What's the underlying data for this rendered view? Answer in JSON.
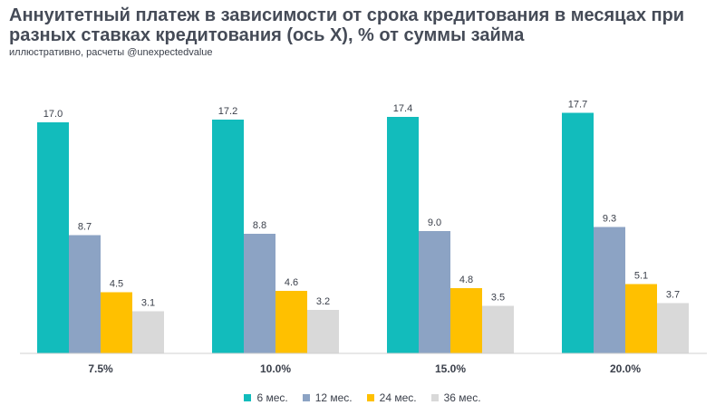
{
  "header": {
    "title": "Аннуитетный платеж в зависимости от срока кредитования в месяцах при разных ставках кредитования (ось X), % от суммы займа",
    "subtitle": "иллюстративно, расчеты @unexpectedvalue"
  },
  "colors": {
    "6 мес.": "#12bcbc",
    "12 мес.": "#8ca3c4",
    "24 мес.": "#ffc000",
    "36 мес.": "#d9d9d9"
  },
  "chart_data": {
    "type": "bar",
    "title": "Аннуитетный платеж в зависимости от срока кредитования в месяцах при разных ставках кредитования (ось X), % от суммы займа",
    "xlabel": "",
    "ylabel": "",
    "categories": [
      "7.5%",
      "10.0%",
      "15.0%",
      "20.0%"
    ],
    "series": [
      {
        "name": "6 мес.",
        "values": [
          17.0,
          17.2,
          17.4,
          17.7
        ],
        "labels": [
          "17.0",
          "17.2",
          "17.4",
          "17.7"
        ]
      },
      {
        "name": "12 мес.",
        "values": [
          8.7,
          8.8,
          9.0,
          9.3
        ],
        "labels": [
          "8.7",
          "8.8",
          "9.0",
          "9.3"
        ]
      },
      {
        "name": "24 мес.",
        "values": [
          4.5,
          4.6,
          4.8,
          5.1
        ],
        "labels": [
          "4.5",
          "4.6",
          "4.8",
          "5.1"
        ]
      },
      {
        "name": "36 мес.",
        "values": [
          3.1,
          3.2,
          3.5,
          3.7
        ],
        "labels": [
          "3.1",
          "3.2",
          "3.5",
          "3.7"
        ]
      }
    ],
    "ylim": [
      0,
      20
    ],
    "grid": false,
    "legend_position": "bottom"
  }
}
